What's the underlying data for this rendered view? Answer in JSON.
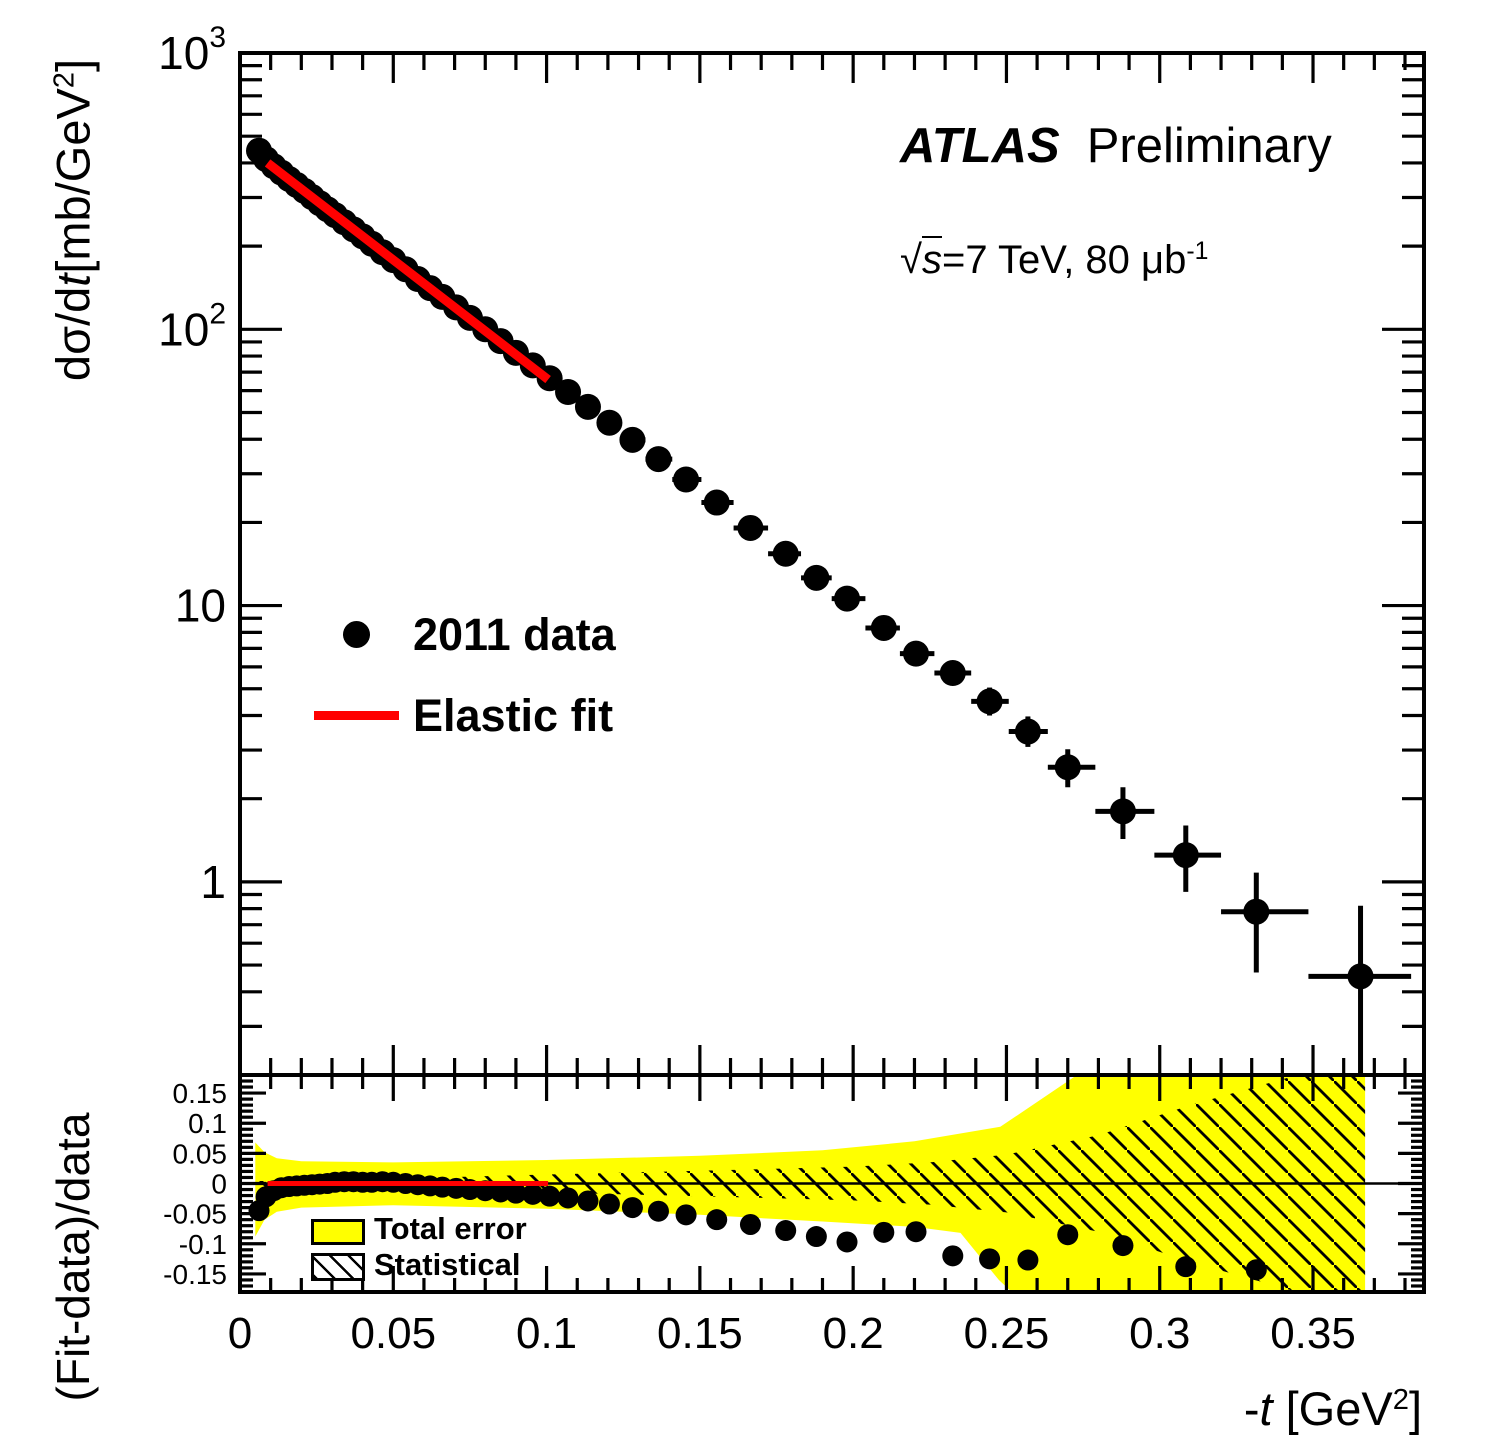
{
  "labels": {
    "atlas": "ATLAS",
    "preliminary": "Preliminary",
    "cond_sqrt": "√",
    "cond_s": "s",
    "cond_rest": "=7 TeV, 80 ",
    "cond_unit": "μb",
    "cond_exp": "-1",
    "legend_data": "2011 data",
    "legend_fit": "Elastic fit",
    "ratio_legend_total": "Total error",
    "ratio_legend_stat": "Statistical",
    "y_ratio_title": "(Fit-data)/data",
    "y_main_title_parts": [
      {
        "t": "dσ/d",
        "s": "n"
      },
      {
        "t": "t",
        "s": "i"
      },
      {
        "t": "[mb/GeV",
        "s": "n"
      },
      {
        "t": "2",
        "s": "sup"
      },
      {
        "t": "]",
        "s": "n"
      }
    ],
    "x_title_parts": [
      {
        "t": "-",
        "s": "n"
      },
      {
        "t": "t",
        "s": "i"
      },
      {
        "t": " [GeV",
        "s": "n"
      },
      {
        "t": "2",
        "s": "sup"
      },
      {
        "t": "]",
        "s": "n"
      }
    ]
  },
  "colors": {
    "marker": "#000000",
    "fit_line": "#ff0000",
    "total_error_band": "#ffff00",
    "frame": "#000000",
    "background": "#ffffff"
  },
  "chart_data": {
    "type": "scatter",
    "title": "ATLAS Preliminary elastic differential cross-section",
    "x_axis": {
      "label": "-t [GeV²]",
      "min": 0,
      "max": 0.3862,
      "minor_step": 0.01,
      "major_step": 0.05,
      "tick_labels": [
        {
          "v": 0,
          "text": "0"
        },
        {
          "v": 0.05,
          "text": "0.05"
        },
        {
          "v": 0.1,
          "text": "0.1"
        },
        {
          "v": 0.15,
          "text": "0.15"
        },
        {
          "v": 0.2,
          "text": "0.2"
        },
        {
          "v": 0.25,
          "text": "0.25"
        },
        {
          "v": 0.3,
          "text": "0.3"
        },
        {
          "v": 0.35,
          "text": "0.35"
        }
      ]
    },
    "y_main": {
      "label": "dσ/dt[mb/GeV²]",
      "scale": "log",
      "min": 0.2,
      "max": 1000,
      "tick_labels": [
        {
          "v": 1000,
          "base": "10",
          "exp": "3"
        },
        {
          "v": 100,
          "base": "10",
          "exp": "2"
        },
        {
          "v": 10,
          "base": "10",
          "exp": ""
        },
        {
          "v": 1,
          "base": "1",
          "exp": ""
        }
      ]
    },
    "y_ratio": {
      "label": "(Fit-data)/data",
      "min": -0.18,
      "max": 0.18,
      "minor_step": 0.01,
      "major_step": 0.05,
      "tick_labels": [
        {
          "v": 0.15,
          "text": "0.15"
        },
        {
          "v": 0.1,
          "text": "0.1"
        },
        {
          "v": 0.05,
          "text": "0.05"
        },
        {
          "v": 0,
          "text": "0"
        },
        {
          "v": -0.05,
          "text": "-0.05"
        },
        {
          "v": -0.1,
          "text": "-0.1"
        },
        {
          "v": -0.15,
          "text": "-0.15"
        }
      ]
    },
    "fit": {
      "label": "Elastic fit",
      "A": 478,
      "B": 19.73,
      "t_start": 0.009,
      "t_end": 0.1005,
      "ratio_value": 0
    },
    "legend": [
      {
        "marker": "dot",
        "label": "2011 data"
      },
      {
        "marker": "line",
        "label": "Elastic fit"
      }
    ],
    "ratio_legend": [
      {
        "swatch": "solid-yellow",
        "label": "Total error"
      },
      {
        "swatch": "hatched",
        "label": "Statistical"
      }
    ],
    "points": [
      [
        0.0062,
        443,
        -0.045,
        null,
        null
      ],
      [
        0.0085,
        413,
        -0.022,
        null,
        null
      ],
      [
        0.011,
        389,
        -0.012,
        null,
        null
      ],
      [
        0.0135,
        369,
        -0.007,
        null,
        null
      ],
      [
        0.016,
        350,
        -0.005,
        null,
        null
      ],
      [
        0.0185,
        333,
        -0.004,
        null,
        null
      ],
      [
        0.021,
        317,
        -0.003,
        null,
        null
      ],
      [
        0.0235,
        301,
        -0.002,
        null,
        null
      ],
      [
        0.026,
        286,
        -0.001,
        null,
        null
      ],
      [
        0.0285,
        272,
        0.0,
        null,
        null
      ],
      [
        0.031,
        259,
        0.002,
        null,
        null
      ],
      [
        0.034,
        244,
        0.003,
        null,
        null
      ],
      [
        0.037,
        230,
        0.003,
        null,
        null
      ],
      [
        0.04,
        217,
        0.002,
        null,
        null
      ],
      [
        0.043,
        204,
        0.002,
        null,
        null
      ],
      [
        0.0465,
        190,
        0.003,
        null,
        null
      ],
      [
        0.05,
        178,
        0.002,
        null,
        null
      ],
      [
        0.054,
        165,
        0.0,
        null,
        null
      ],
      [
        0.058,
        152,
        -0.002,
        null,
        null
      ],
      [
        0.062,
        141,
        -0.004,
        null,
        null
      ],
      [
        0.066,
        131,
        -0.006,
        null,
        null
      ],
      [
        0.0705,
        120,
        -0.008,
        null,
        null
      ],
      [
        0.075,
        110,
        -0.01,
        null,
        null
      ],
      [
        0.08,
        100,
        -0.012,
        null,
        null
      ],
      [
        0.085,
        90.6,
        -0.014,
        null,
        null
      ],
      [
        0.09,
        82.2,
        -0.016,
        null,
        null
      ],
      [
        0.0955,
        74,
        -0.018,
        null,
        null
      ],
      [
        0.101,
        66.5,
        -0.021,
        null,
        null
      ],
      [
        0.107,
        59.3,
        -0.024,
        null,
        null
      ],
      [
        0.1135,
        52.4,
        -0.029,
        null,
        null
      ],
      [
        0.1205,
        45.9,
        -0.034,
        null,
        null
      ],
      [
        0.128,
        39.8,
        -0.04,
        null,
        null
      ],
      [
        0.1365,
        33.9,
        -0.046,
        null,
        null
      ],
      [
        0.1455,
        28.6,
        -0.052,
        null,
        null
      ],
      [
        0.1555,
        23.6,
        -0.06,
        null,
        null
      ],
      [
        0.1665,
        19.1,
        -0.068,
        null,
        null
      ],
      [
        0.178,
        15.4,
        -0.078,
        null,
        null
      ],
      [
        0.188,
        12.6,
        -0.088,
        null,
        null
      ],
      [
        0.198,
        10.6,
        -0.097,
        null,
        null
      ],
      [
        0.21,
        8.3,
        -0.081,
        null,
        null
      ],
      [
        0.2205,
        6.7,
        -0.08,
        6.1,
        7.3
      ],
      [
        0.2325,
        5.7,
        -0.12,
        5.15,
        6.25
      ],
      [
        0.2445,
        4.5,
        -0.125,
        4.0,
        5.05
      ],
      [
        0.257,
        3.5,
        -0.127,
        3.08,
        3.97
      ],
      [
        0.27,
        2.6,
        -0.085,
        2.2,
        3.02
      ],
      [
        0.288,
        1.8,
        -0.103,
        1.43,
        2.2
      ],
      [
        0.3085,
        1.25,
        -0.138,
        0.92,
        1.6
      ],
      [
        0.3315,
        0.78,
        -0.143,
        0.47,
        1.08
      ],
      [
        0.3655,
        0.455,
        null,
        0.2,
        0.82
      ]
    ],
    "bands": {
      "total": {
        "label": "Total error",
        "color": "#ffff00",
        "top": [
          [
            0.005,
            0.068
          ],
          [
            0.008,
            0.052
          ],
          [
            0.012,
            0.042
          ],
          [
            0.02,
            0.037
          ],
          [
            0.05,
            0.035
          ],
          [
            0.1,
            0.039
          ],
          [
            0.15,
            0.046
          ],
          [
            0.19,
            0.055
          ],
          [
            0.22,
            0.07
          ],
          [
            0.248,
            0.094
          ],
          [
            0.273,
            0.18
          ],
          [
            0.3,
            0.2
          ],
          [
            0.367,
            0.2
          ]
        ],
        "bottom": [
          [
            0.005,
            -0.088
          ],
          [
            0.008,
            -0.06
          ],
          [
            0.012,
            -0.047
          ],
          [
            0.02,
            -0.04
          ],
          [
            0.05,
            -0.036
          ],
          [
            0.1,
            -0.042
          ],
          [
            0.15,
            -0.052
          ],
          [
            0.19,
            -0.063
          ],
          [
            0.22,
            -0.072
          ],
          [
            0.235,
            -0.082
          ],
          [
            0.2475,
            -0.16
          ],
          [
            0.256,
            -0.2
          ],
          [
            0.367,
            -0.2
          ]
        ]
      },
      "stat": {
        "label": "Statistical",
        "style": "hatched",
        "t_start": 0.005,
        "t_end": 0.367,
        "half_width": [
          [
            0.005,
            0.004
          ],
          [
            0.05,
            0.008
          ],
          [
            0.1,
            0.015
          ],
          [
            0.15,
            0.021
          ],
          [
            0.2,
            0.028
          ],
          [
            0.225,
            0.035
          ],
          [
            0.25,
            0.048
          ],
          [
            0.28,
            0.08
          ],
          [
            0.31,
            0.13
          ],
          [
            0.345,
            0.18
          ],
          [
            0.367,
            0.2
          ]
        ]
      }
    }
  }
}
